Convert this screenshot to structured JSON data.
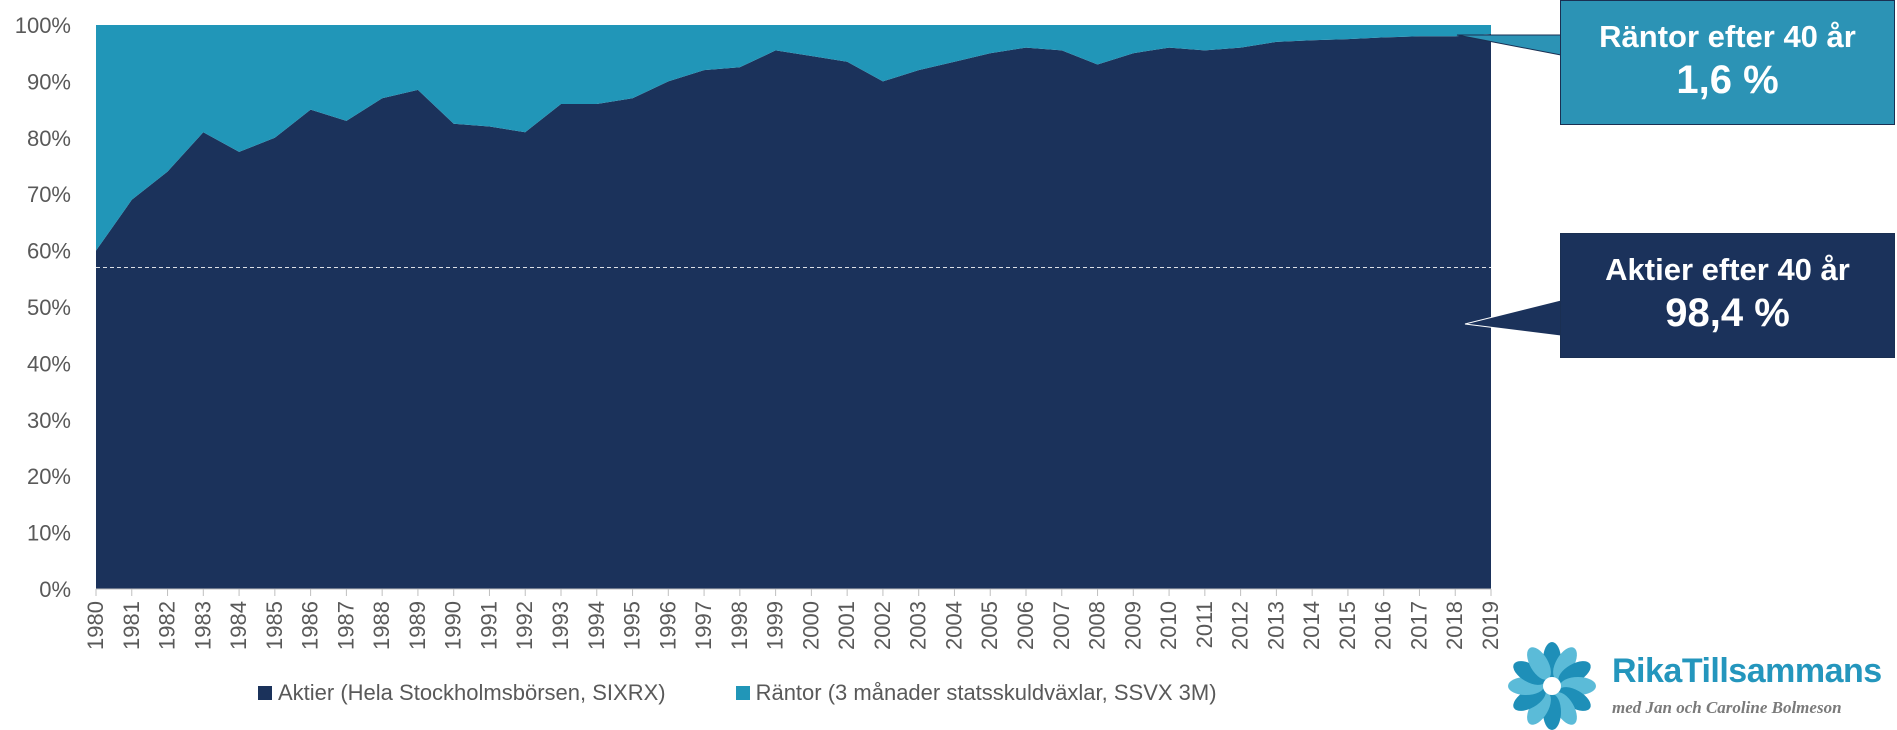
{
  "chart_data": {
    "type": "area",
    "stacked": "percent",
    "x": [
      1980,
      1981,
      1982,
      1983,
      1984,
      1985,
      1986,
      1987,
      1988,
      1989,
      1990,
      1991,
      1992,
      1993,
      1994,
      1995,
      1996,
      1997,
      1998,
      1999,
      2000,
      2001,
      2002,
      2003,
      2004,
      2005,
      2006,
      2007,
      2008,
      2009,
      2010,
      2011,
      2012,
      2013,
      2014,
      2015,
      2016,
      2017,
      2018,
      2019
    ],
    "series": [
      {
        "name": "Aktier (Hela Stockholmsbörsen, SIXRX)",
        "color": "#1b325b",
        "values": [
          60,
          69,
          74,
          81,
          77.5,
          80,
          85,
          83,
          87,
          88.5,
          82.5,
          82,
          81,
          86,
          86,
          87,
          90,
          92,
          92.5,
          95.5,
          94.5,
          93.5,
          90,
          92,
          93.5,
          95,
          96,
          95.5,
          93,
          95,
          96,
          95.5,
          96,
          97,
          97.3,
          97.5,
          97.8,
          98,
          98,
          98.4
        ]
      },
      {
        "name": "Räntor (3 månader statsskuldväxlar, SSVX 3M)",
        "color": "#2196b8",
        "values": [
          40,
          31,
          26,
          19,
          22.5,
          20,
          15,
          17,
          13,
          11.5,
          17.5,
          18,
          19,
          14,
          14,
          13,
          10,
          8,
          7.5,
          4.5,
          5.5,
          6.5,
          10,
          8,
          6.5,
          5,
          4,
          4.5,
          7,
          5,
          4,
          4.5,
          4,
          3,
          2.7,
          2.5,
          2.2,
          2,
          2,
          1.6
        ]
      }
    ],
    "y_ticks": [
      "0%",
      "10%",
      "20%",
      "30%",
      "40%",
      "50%",
      "60%",
      "70%",
      "80%",
      "90%",
      "100%"
    ],
    "ylim": [
      0,
      100
    ],
    "reference_line": {
      "value": 57,
      "style": "dashed",
      "color": "#ffffff"
    },
    "legend_position": "bottom"
  },
  "annotations": {
    "rantor": {
      "line1": "Räntor efter 40 år",
      "line2": "1,6 %"
    },
    "aktier": {
      "line1": "Aktier efter 40 år",
      "line2": "98,4 %"
    }
  },
  "legend": {
    "aktier": "Aktier (Hela Stockholmsbörsen, SIXRX)",
    "rantor": "Räntor (3 månader statsskuldväxlar, SSVX 3M)"
  },
  "logo": {
    "title": "RikaTillsammans",
    "subtitle": "med Jan och Caroline Bolmeson",
    "icon": "flower-icon"
  }
}
